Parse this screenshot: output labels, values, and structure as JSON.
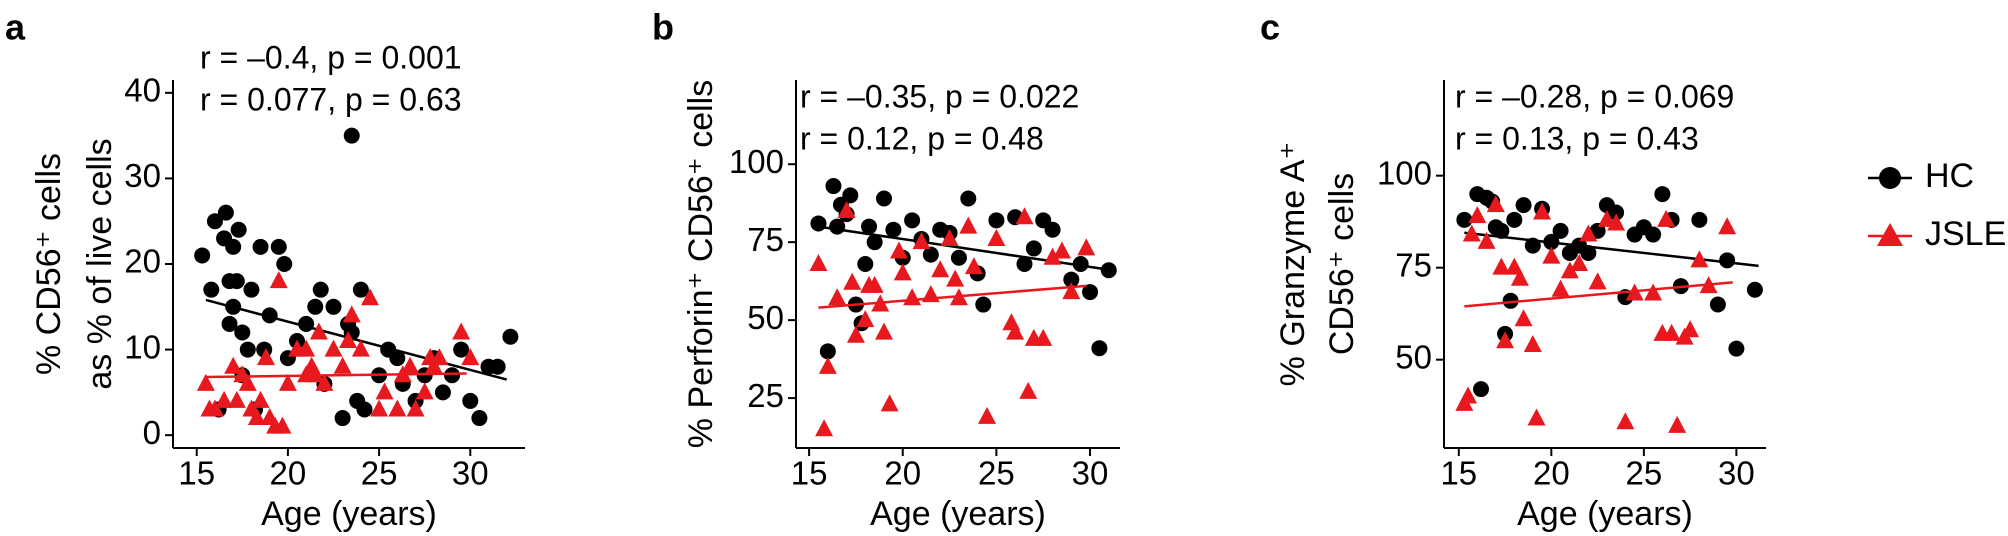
{
  "chart_data": [
    {
      "type": "scatter",
      "panel": "a",
      "ylabel": [
        "% CD56⁺ cells",
        "as % of live cells"
      ],
      "xlabel": "Age (years)",
      "annotations": [
        {
          "text": "r = –0.4, p = 0.001",
          "color": "#000000"
        },
        {
          "text": "r = 0.077, p = 0.63",
          "color": "#e8191e"
        }
      ],
      "xlim": [
        13.7,
        33
      ],
      "ylim": [
        -1.5,
        41.5
      ],
      "xticks": [
        15,
        20,
        25,
        30
      ],
      "yticks": [
        0,
        10,
        20,
        30,
        40
      ],
      "series": [
        {
          "name": "HC",
          "color": "#000000",
          "marker": "circle",
          "x": [
            15.3,
            15.8,
            16,
            16.2,
            16.5,
            16.6,
            16.8,
            16.8,
            17,
            17,
            17.2,
            17.3,
            17.5,
            17.5,
            17.8,
            18,
            18.2,
            18.5,
            18.7,
            19,
            19.5,
            19.8,
            20,
            20.5,
            21,
            21.5,
            21.8,
            22,
            22.5,
            23,
            23.3,
            23.5,
            23.5,
            23.8,
            24,
            24.2,
            25,
            25.5,
            26,
            26.3,
            27,
            27.5,
            28,
            28.5,
            29,
            29.5,
            30,
            30.5,
            31,
            31.5,
            32.2
          ],
          "y": [
            21,
            17,
            25,
            3,
            23,
            26,
            13,
            18,
            15,
            22,
            18,
            24,
            12,
            7,
            10,
            17,
            3,
            22,
            10,
            14,
            22,
            20,
            9,
            11,
            13,
            15,
            17,
            6,
            15,
            2,
            13,
            35,
            12,
            4,
            17,
            3,
            7,
            10,
            9,
            6,
            4,
            7,
            9,
            5,
            7,
            10,
            4,
            2,
            8,
            8,
            11.5
          ],
          "fit": {
            "x": [
              15.5,
              32
            ],
            "y": [
              15.8,
              6.5
            ]
          }
        },
        {
          "name": "JSLE",
          "color": "#e8191e",
          "marker": "triangle",
          "x": [
            15.5,
            15.7,
            16,
            16.5,
            17,
            17.2,
            17.5,
            17.8,
            18,
            18.3,
            18.5,
            18.8,
            19,
            19.3,
            19.5,
            19.7,
            20,
            20.5,
            21,
            21,
            21.3,
            21.5,
            21.7,
            22,
            22.5,
            23,
            23.3,
            23.5,
            24,
            24.5,
            25,
            25.3,
            26,
            26.3,
            26.7,
            27,
            27.5,
            27.8,
            28,
            28.3,
            29.5,
            30
          ],
          "y": [
            6,
            3,
            3,
            4,
            8,
            4,
            7,
            6,
            3,
            2,
            4,
            9,
            2,
            1,
            18,
            1,
            6,
            10,
            7,
            10,
            8,
            7,
            12,
            6,
            10,
            8,
            11,
            14,
            10,
            16,
            3,
            5,
            3,
            7,
            8,
            3,
            5,
            9,
            8,
            9,
            12,
            9
          ],
          "fit": {
            "x": [
              15.5,
              29.8
            ],
            "y": [
              6.8,
              7.2
            ]
          }
        }
      ]
    },
    {
      "type": "scatter",
      "panel": "b",
      "ylabel": [
        "% Perforin⁺ CD56⁺ cells"
      ],
      "xlabel": "Age (years)",
      "annotations": [
        {
          "text": "r = –0.35, p = 0.022",
          "color": "#000000"
        },
        {
          "text": "r = 0.12, p = 0.48",
          "color": "#e8191e"
        }
      ],
      "xlim": [
        14.3,
        31.6
      ],
      "ylim": [
        9,
        127
      ],
      "xticks": [
        15,
        20,
        25,
        30
      ],
      "yticks": [
        25,
        50,
        75,
        100
      ],
      "series": [
        {
          "name": "HC",
          "color": "#000000",
          "marker": "circle",
          "x": [
            15.5,
            16,
            16.3,
            16.5,
            16.7,
            17,
            17.2,
            17.5,
            17.8,
            18,
            18.2,
            18.5,
            19,
            19.5,
            20,
            20.5,
            21,
            21.5,
            22,
            22.5,
            23,
            23.5,
            24,
            24.3,
            25,
            26,
            26.5,
            27,
            27.5,
            28,
            29,
            29.5,
            30,
            30.5,
            31
          ],
          "y": [
            81,
            40,
            93,
            80,
            87,
            84,
            90,
            55,
            49,
            68,
            80,
            75,
            89,
            79,
            70,
            82,
            76,
            71,
            79,
            78,
            70,
            89,
            65,
            55,
            82,
            83,
            68,
            73,
            82,
            79,
            63,
            68,
            59,
            41,
            66
          ],
          "fit": {
            "x": [
              15.5,
              31.2
            ],
            "y": [
              80,
              66
            ]
          }
        },
        {
          "name": "JSLE",
          "color": "#e8191e",
          "marker": "triangle",
          "x": [
            15.5,
            15.8,
            16,
            16.5,
            17,
            17.3,
            17.5,
            18,
            18.2,
            18.5,
            18.8,
            19,
            19.3,
            19.8,
            20,
            20.5,
            21,
            21.5,
            22,
            22.5,
            22.8,
            23,
            23.5,
            23.8,
            24.5,
            25,
            25.8,
            26,
            26.5,
            26.7,
            27,
            27.5,
            28,
            28.5,
            29,
            29.8
          ],
          "y": [
            68,
            15,
            35,
            57,
            85,
            62,
            45,
            50,
            61,
            61,
            55,
            46,
            23,
            72,
            65,
            57,
            75,
            58,
            66,
            76,
            63,
            57,
            80,
            67,
            19,
            76,
            49,
            46,
            83,
            27,
            44,
            44,
            70,
            72,
            59,
            73
          ],
          "fit": {
            "x": [
              15.5,
              29.8
            ],
            "y": [
              54,
              61
            ]
          }
        }
      ]
    },
    {
      "type": "scatter",
      "panel": "c",
      "ylabel": [
        "% Granzyme A⁺",
        "CD56⁺ cells"
      ],
      "xlabel": "Age (years)",
      "annotations": [
        {
          "text": "r = –0.28, p = 0.069",
          "color": "#000000"
        },
        {
          "text": "r = 0.13, p = 0.43",
          "color": "#e8191e"
        }
      ],
      "xlim": [
        14.2,
        31.6
      ],
      "ylim": [
        26,
        126
      ],
      "xticks": [
        15,
        20,
        25,
        30
      ],
      "yticks": [
        50,
        75,
        100
      ],
      "legend": "right",
      "series": [
        {
          "name": "HC",
          "color": "#000000",
          "marker": "circle",
          "x": [
            15.3,
            16,
            16.2,
            16.5,
            16.8,
            17,
            17.3,
            17.5,
            17.8,
            18,
            18.5,
            19,
            19.5,
            20,
            20.5,
            21,
            21.5,
            22,
            22.5,
            23,
            23.5,
            24,
            24.5,
            25,
            25.5,
            26,
            26.5,
            27,
            28,
            29,
            29.5,
            30,
            31
          ],
          "y": [
            88,
            95,
            42,
            94,
            93,
            86,
            85,
            57,
            66,
            88,
            92,
            81,
            91,
            82,
            85,
            79,
            81,
            79,
            85,
            92,
            90,
            67,
            84,
            86,
            84,
            95,
            88,
            70,
            88,
            65,
            77,
            53,
            69
          ],
          "fit": {
            "x": [
              15.3,
              31.2
            ],
            "y": [
              84.5,
              75.5
            ]
          }
        },
        {
          "name": "JSLE",
          "color": "#e8191e",
          "marker": "triangle",
          "x": [
            15.3,
            15.5,
            15.7,
            16,
            16.5,
            17,
            17.3,
            17.5,
            18,
            18.3,
            18.5,
            19,
            19.2,
            19.5,
            20,
            20.5,
            21,
            21.5,
            22,
            22.5,
            23,
            23.5,
            24,
            24.5,
            25.5,
            26,
            26.2,
            26.5,
            26.8,
            27.2,
            27.5,
            28,
            28.5,
            29.5
          ],
          "y": [
            38,
            40,
            84,
            89,
            82,
            92,
            75,
            55,
            75,
            72,
            61,
            54,
            34,
            90,
            78,
            69,
            74,
            76,
            84,
            71,
            88,
            87,
            33,
            68,
            68,
            57,
            88,
            57,
            32,
            56,
            58,
            77,
            70,
            86
          ],
          "fit": {
            "x": [
              15.3,
              29.8
            ],
            "y": [
              64.5,
              71
            ]
          }
        }
      ]
    }
  ]
}
